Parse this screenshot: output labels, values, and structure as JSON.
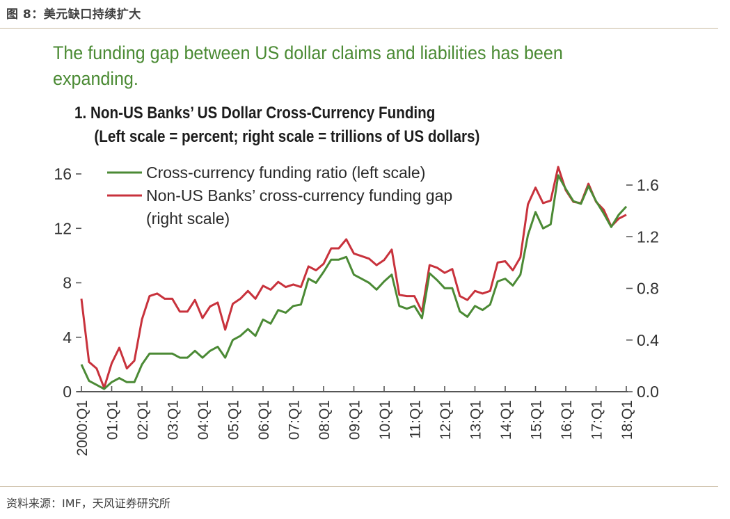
{
  "figure": {
    "title": "图 8：美元缺口持续扩大",
    "headline": "The funding gap between US dollar claims and liabilities has been expanding.",
    "subtitle_line1": "1. Non-US Banks’ US Dollar Cross-Currency Funding",
    "subtitle_line2": "(Left scale = percent; right scale = trillions of US dollars)",
    "source": "资料来源：IMF，天风证券研究所"
  },
  "colors": {
    "green_series": "#4b8a35",
    "red_series": "#c8323c",
    "headline": "#4a8a33",
    "axis": "#555555"
  },
  "chart_data": {
    "type": "line",
    "title": "1. Non-US Banks’ US Dollar Cross-Currency Funding",
    "subtitle": "(Left scale = percent; right scale = trillions of US dollars)",
    "xlabel": "",
    "ylabel_left": "percent",
    "ylabel_right": "trillions of US dollars",
    "ylim_left": [
      0,
      16
    ],
    "ylim_right": [
      0,
      1.6
    ],
    "yticks_left": [
      "0",
      "4",
      "8",
      "12",
      "16"
    ],
    "yticks_right": [
      "0.0",
      "0.4",
      "0.8",
      "1.2",
      "1.6"
    ],
    "xtick_labels": [
      "2000:Q1",
      "01:Q1",
      "02:Q1",
      "03:Q1",
      "04:Q1",
      "05:Q1",
      "06:Q1",
      "07:Q1",
      "08:Q1",
      "09:Q1",
      "10:Q1",
      "11:Q1",
      "12:Q1",
      "13:Q1",
      "14:Q1",
      "15:Q1",
      "16:Q1",
      "17:Q1",
      "18:Q1"
    ],
    "x_start": "2000:Q1",
    "x_frequency": "quarterly",
    "grid": false,
    "legend_position": "top-left",
    "series": [
      {
        "name": "Cross-currency funding ratio (left scale)",
        "axis": "left",
        "values": [
          2.0,
          0.8,
          0.5,
          0.2,
          0.7,
          1.0,
          0.7,
          0.7,
          2.0,
          2.8,
          2.8,
          2.8,
          2.8,
          2.5,
          2.5,
          3.0,
          2.5,
          3.0,
          3.3,
          2.5,
          3.8,
          4.1,
          4.6,
          4.1,
          5.3,
          5.0,
          6.0,
          5.8,
          6.3,
          6.4,
          8.3,
          8.0,
          8.8,
          9.7,
          9.7,
          9.9,
          8.6,
          8.3,
          8.0,
          7.5,
          8.1,
          8.6,
          6.3,
          6.1,
          6.3,
          5.4,
          8.7,
          8.2,
          7.6,
          7.6,
          5.9,
          5.5,
          6.3,
          6.0,
          6.4,
          8.1,
          8.3,
          7.8,
          8.6,
          11.5,
          13.2,
          12.0,
          12.3,
          15.9,
          14.9,
          14.0,
          13.8,
          15.1,
          14.0,
          13.1,
          12.1,
          13.0,
          13.6
        ]
      },
      {
        "name": "Non-US Banks’ cross-currency funding gap (right scale)",
        "axis": "right",
        "values": [
          0.72,
          0.23,
          0.18,
          0.03,
          0.22,
          0.34,
          0.18,
          0.24,
          0.56,
          0.74,
          0.76,
          0.72,
          0.72,
          0.62,
          0.62,
          0.71,
          0.57,
          0.66,
          0.69,
          0.48,
          0.68,
          0.72,
          0.78,
          0.72,
          0.82,
          0.79,
          0.85,
          0.81,
          0.83,
          0.81,
          0.97,
          0.94,
          0.99,
          1.11,
          1.11,
          1.18,
          1.07,
          1.05,
          1.03,
          0.98,
          1.02,
          1.1,
          0.75,
          0.74,
          0.74,
          0.62,
          0.98,
          0.96,
          0.92,
          0.95,
          0.74,
          0.71,
          0.78,
          0.76,
          0.78,
          1.0,
          1.01,
          0.94,
          1.04,
          1.45,
          1.58,
          1.46,
          1.48,
          1.74,
          1.56,
          1.47,
          1.46,
          1.61,
          1.47,
          1.41,
          1.28,
          1.34,
          1.37
        ]
      }
    ],
    "legend": [
      {
        "label_line1": "Cross-currency funding ratio (left scale)",
        "label_line2": ""
      },
      {
        "label_line1": "Non-US Banks’ cross-currency funding gap",
        "label_line2": "(right scale)"
      }
    ]
  }
}
